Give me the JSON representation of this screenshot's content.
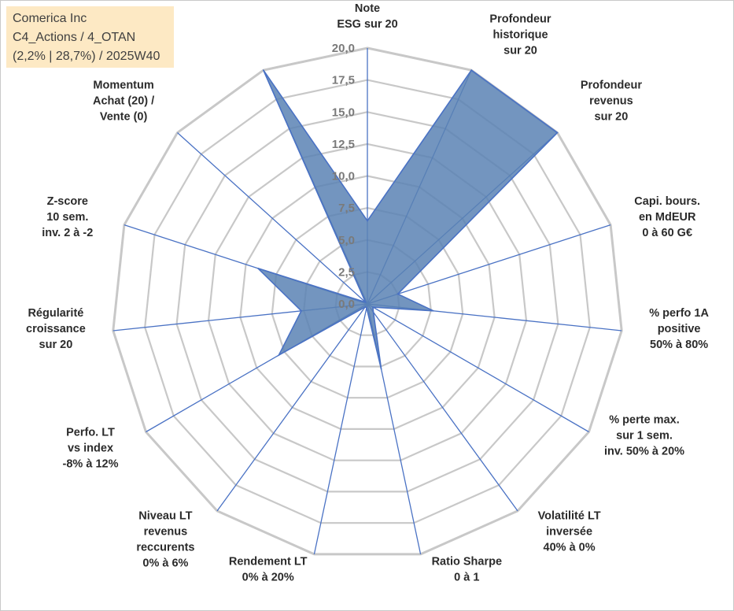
{
  "info": {
    "line1": "Comerica Inc",
    "line2": "C4_Actions / 4_OTAN",
    "line3": "(2,2% | 28,7%) / 2025W40"
  },
  "chart_data": {
    "type": "radar",
    "title": "",
    "rmax": 20,
    "ticks": [
      "0,0",
      "2,5",
      "5,0",
      "7,5",
      "10,0",
      "12,5",
      "15,0",
      "17,5",
      "20,0"
    ],
    "axes": [
      {
        "label": [
          "Note",
          "ESG sur 20"
        ],
        "value": 6.5
      },
      {
        "label": [
          "Profondeur",
          "historique",
          "sur 20"
        ],
        "value": 20
      },
      {
        "label": [
          "Profondeur",
          "revenus",
          "sur 20"
        ],
        "value": 20
      },
      {
        "label": [
          "Capi. bours.",
          "en MdEUR",
          "0 à 60 G€"
        ],
        "value": 2.5
      },
      {
        "label": [
          "% perfo 1A",
          "positive",
          "50% à 80%"
        ],
        "value": 5.2
      },
      {
        "label": [
          "% perte max.",
          "sur 1 sem.",
          "inv. 50% à 20%"
        ],
        "value": 0.5
      },
      {
        "label": [
          "Volatilité LT",
          "inversée",
          "40% à 0%"
        ],
        "value": 0.8
      },
      {
        "label": [
          "Ratio Sharpe",
          "0 à 1"
        ],
        "value": 5.2
      },
      {
        "label": [
          "Rendement LT",
          "0% à 20%"
        ],
        "value": 0.3
      },
      {
        "label": [
          "Niveau LT",
          "revenus",
          "reccurents",
          "0% à 6%"
        ],
        "value": 0.3
      },
      {
        "label": [
          "Perfo. LT",
          "vs index",
          "-8% à 12%"
        ],
        "value": 8.0
      },
      {
        "label": [
          "Régularité",
          "croissance",
          "sur 20"
        ],
        "value": 5.2
      },
      {
        "label": [
          "Z-score",
          "10 sem.",
          "inv. 2 à -2"
        ],
        "value": 9.0
      },
      {
        "label": [
          "Momentum",
          "Achat (20) /",
          "Vente (0)"
        ],
        "value": 0.2
      },
      {
        "label": [
          "",
          ""
        ],
        "value": 20
      }
    ],
    "series": [
      {
        "name": "Comerica Inc",
        "color": "#5b82b4"
      }
    ],
    "colors": {
      "fill": "#5b82b4",
      "line": "#4a72c4",
      "grid": "#c8c8c8",
      "spoke": "#4a72c4"
    }
  }
}
